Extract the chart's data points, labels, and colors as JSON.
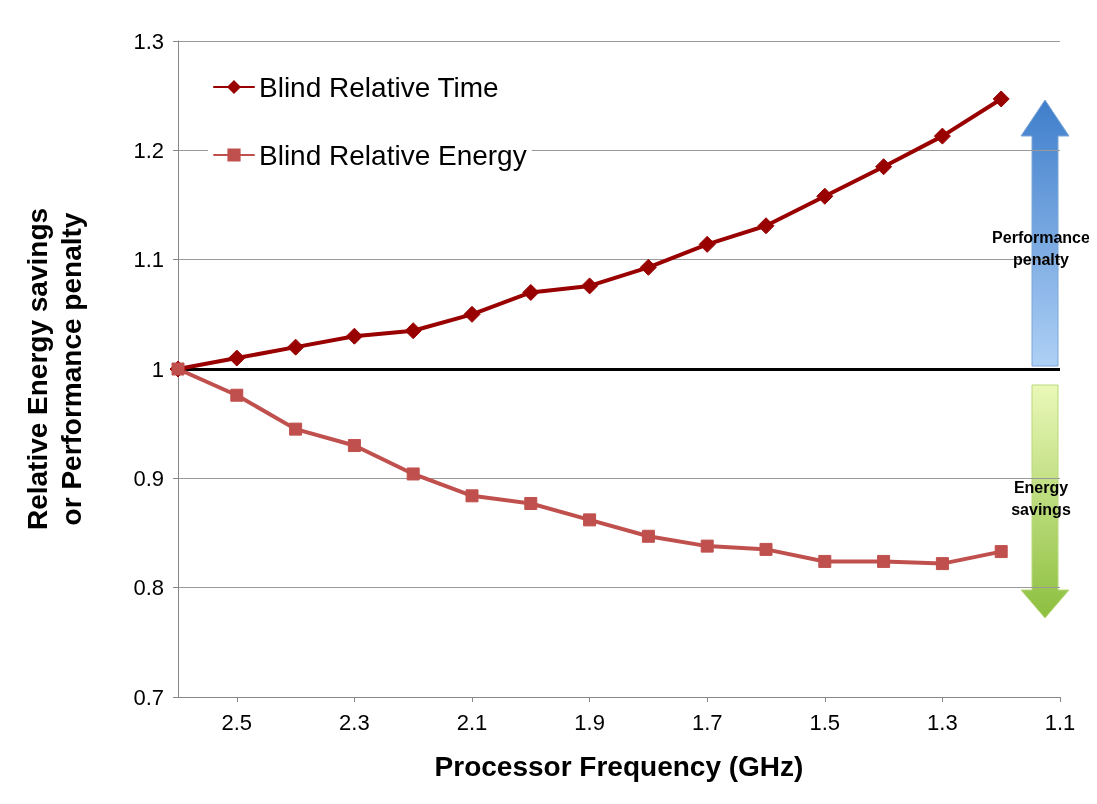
{
  "chart_data": {
    "type": "line",
    "xlabel": "Processor Frequency (GHz)",
    "ylabel": "Relative Energy savings or Performance penalty",
    "x": [
      2.6,
      2.5,
      2.4,
      2.3,
      2.2,
      2.1,
      2.0,
      1.9,
      1.8,
      1.7,
      1.6,
      1.5,
      1.4,
      1.3,
      1.2
    ],
    "series": [
      {
        "name": "Blind Relative Time",
        "color": "#990000",
        "marker": "diamond",
        "values": [
          1.0,
          1.01,
          1.02,
          1.03,
          1.035,
          1.05,
          1.07,
          1.076,
          1.093,
          1.114,
          1.131,
          1.158,
          1.185,
          1.213,
          1.247
        ]
      },
      {
        "name": "Blind Relative Energy",
        "color": "#c0504d",
        "marker": "square",
        "values": [
          1.0,
          0.976,
          0.945,
          0.93,
          0.904,
          0.884,
          0.877,
          0.862,
          0.847,
          0.838,
          0.835,
          0.824,
          0.824,
          0.822,
          0.833
        ]
      }
    ],
    "xlim": [
      2.6,
      1.1
    ],
    "xticks": [
      2.5,
      2.3,
      2.1,
      1.9,
      1.7,
      1.5,
      1.3,
      1.1
    ],
    "ylim": [
      0.7,
      1.3
    ],
    "yticks": [
      0.7,
      0.8,
      0.9,
      1,
      1.1,
      1.2,
      1.3
    ],
    "grid": "y",
    "legend": "top left",
    "line_style": "solid",
    "ref_lines": [
      {
        "axis": "y",
        "value": 1,
        "color": "#000000"
      }
    ],
    "annotations": [
      "Performance penalty",
      "Energy savings"
    ]
  }
}
